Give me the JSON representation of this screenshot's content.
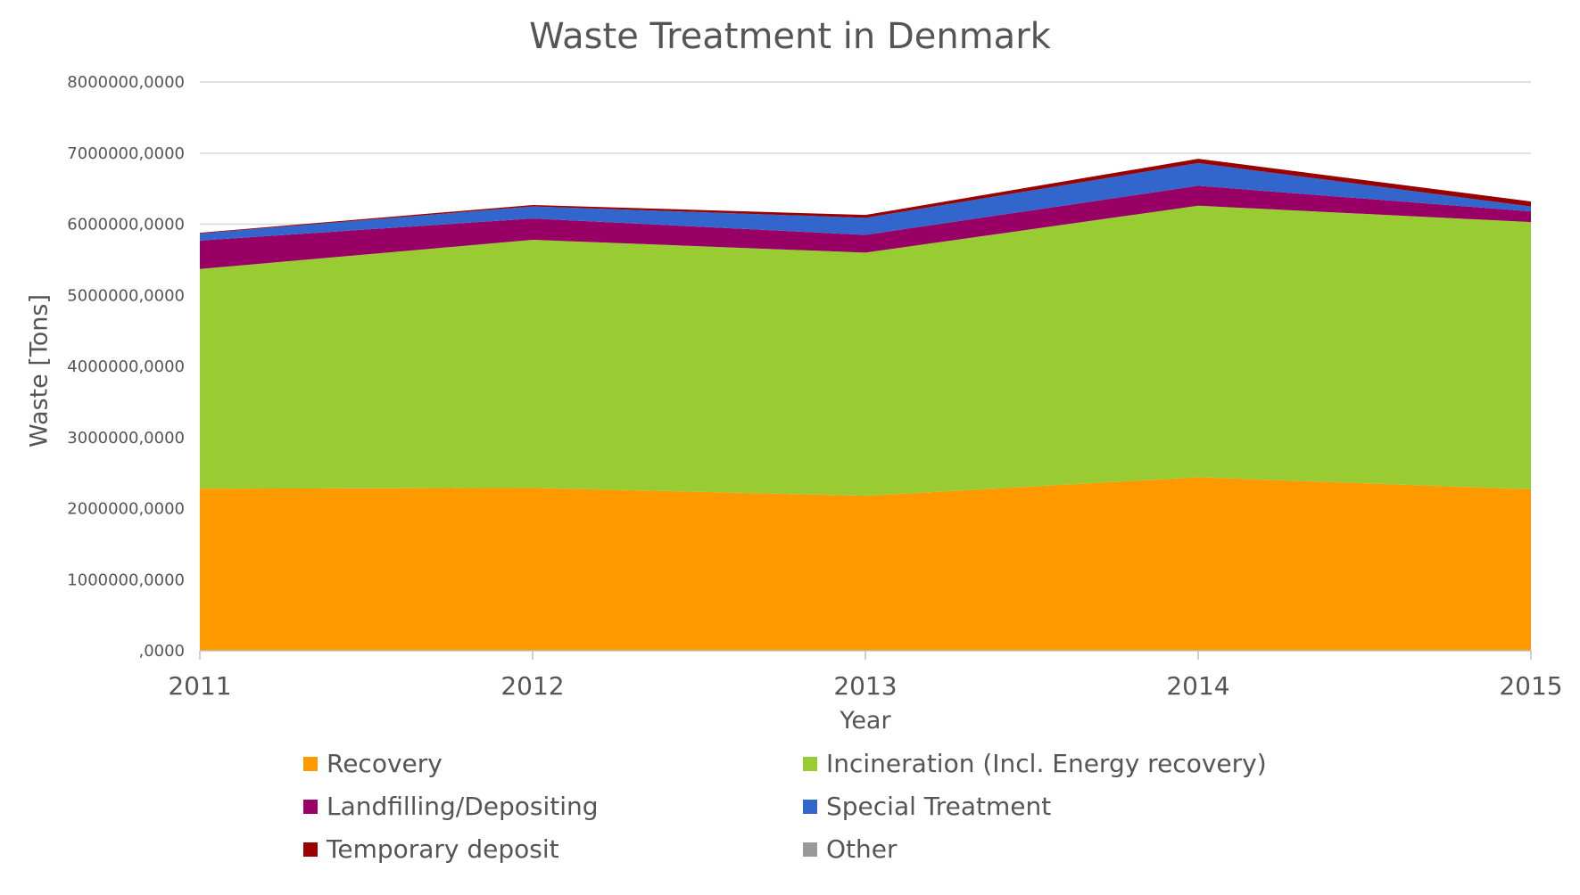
{
  "chart_data": {
    "type": "area",
    "stacked": true,
    "title": "Waste Treatment in Denmark",
    "xlabel": "Year",
    "ylabel": "Waste [Tons]",
    "x": [
      "2011",
      "2012",
      "2013",
      "2014",
      "2015"
    ],
    "ylim": [
      0,
      8000000
    ],
    "yticks": [
      ",0000",
      "1000000,0000",
      "2000000,0000",
      "3000000,0000",
      "4000000,0000",
      "5000000,0000",
      "6000000,0000",
      "7000000,0000",
      "8000000,0000"
    ],
    "grid": true,
    "legend_position": "bottom",
    "series": [
      {
        "name": "Recovery",
        "color": "#FF9900",
        "values": [
          2280000,
          2290000,
          2180000,
          2440000,
          2270000
        ]
      },
      {
        "name": "Incineration (Incl. Energy recovery)",
        "color": "#99CC33",
        "values": [
          3090000,
          3490000,
          3420000,
          3820000,
          3760000
        ]
      },
      {
        "name": "Landfilling/Depositing",
        "color": "#990066",
        "values": [
          400000,
          300000,
          250000,
          280000,
          150000
        ]
      },
      {
        "name": "Special Treatment",
        "color": "#3366CC",
        "values": [
          100000,
          170000,
          240000,
          320000,
          70000
        ]
      },
      {
        "name": "Temporary deposit",
        "color": "#990000",
        "values": [
          10000,
          20000,
          40000,
          60000,
          70000
        ]
      },
      {
        "name": "Other",
        "color": "#999999",
        "values": [
          0,
          0,
          0,
          0,
          0
        ]
      }
    ]
  }
}
